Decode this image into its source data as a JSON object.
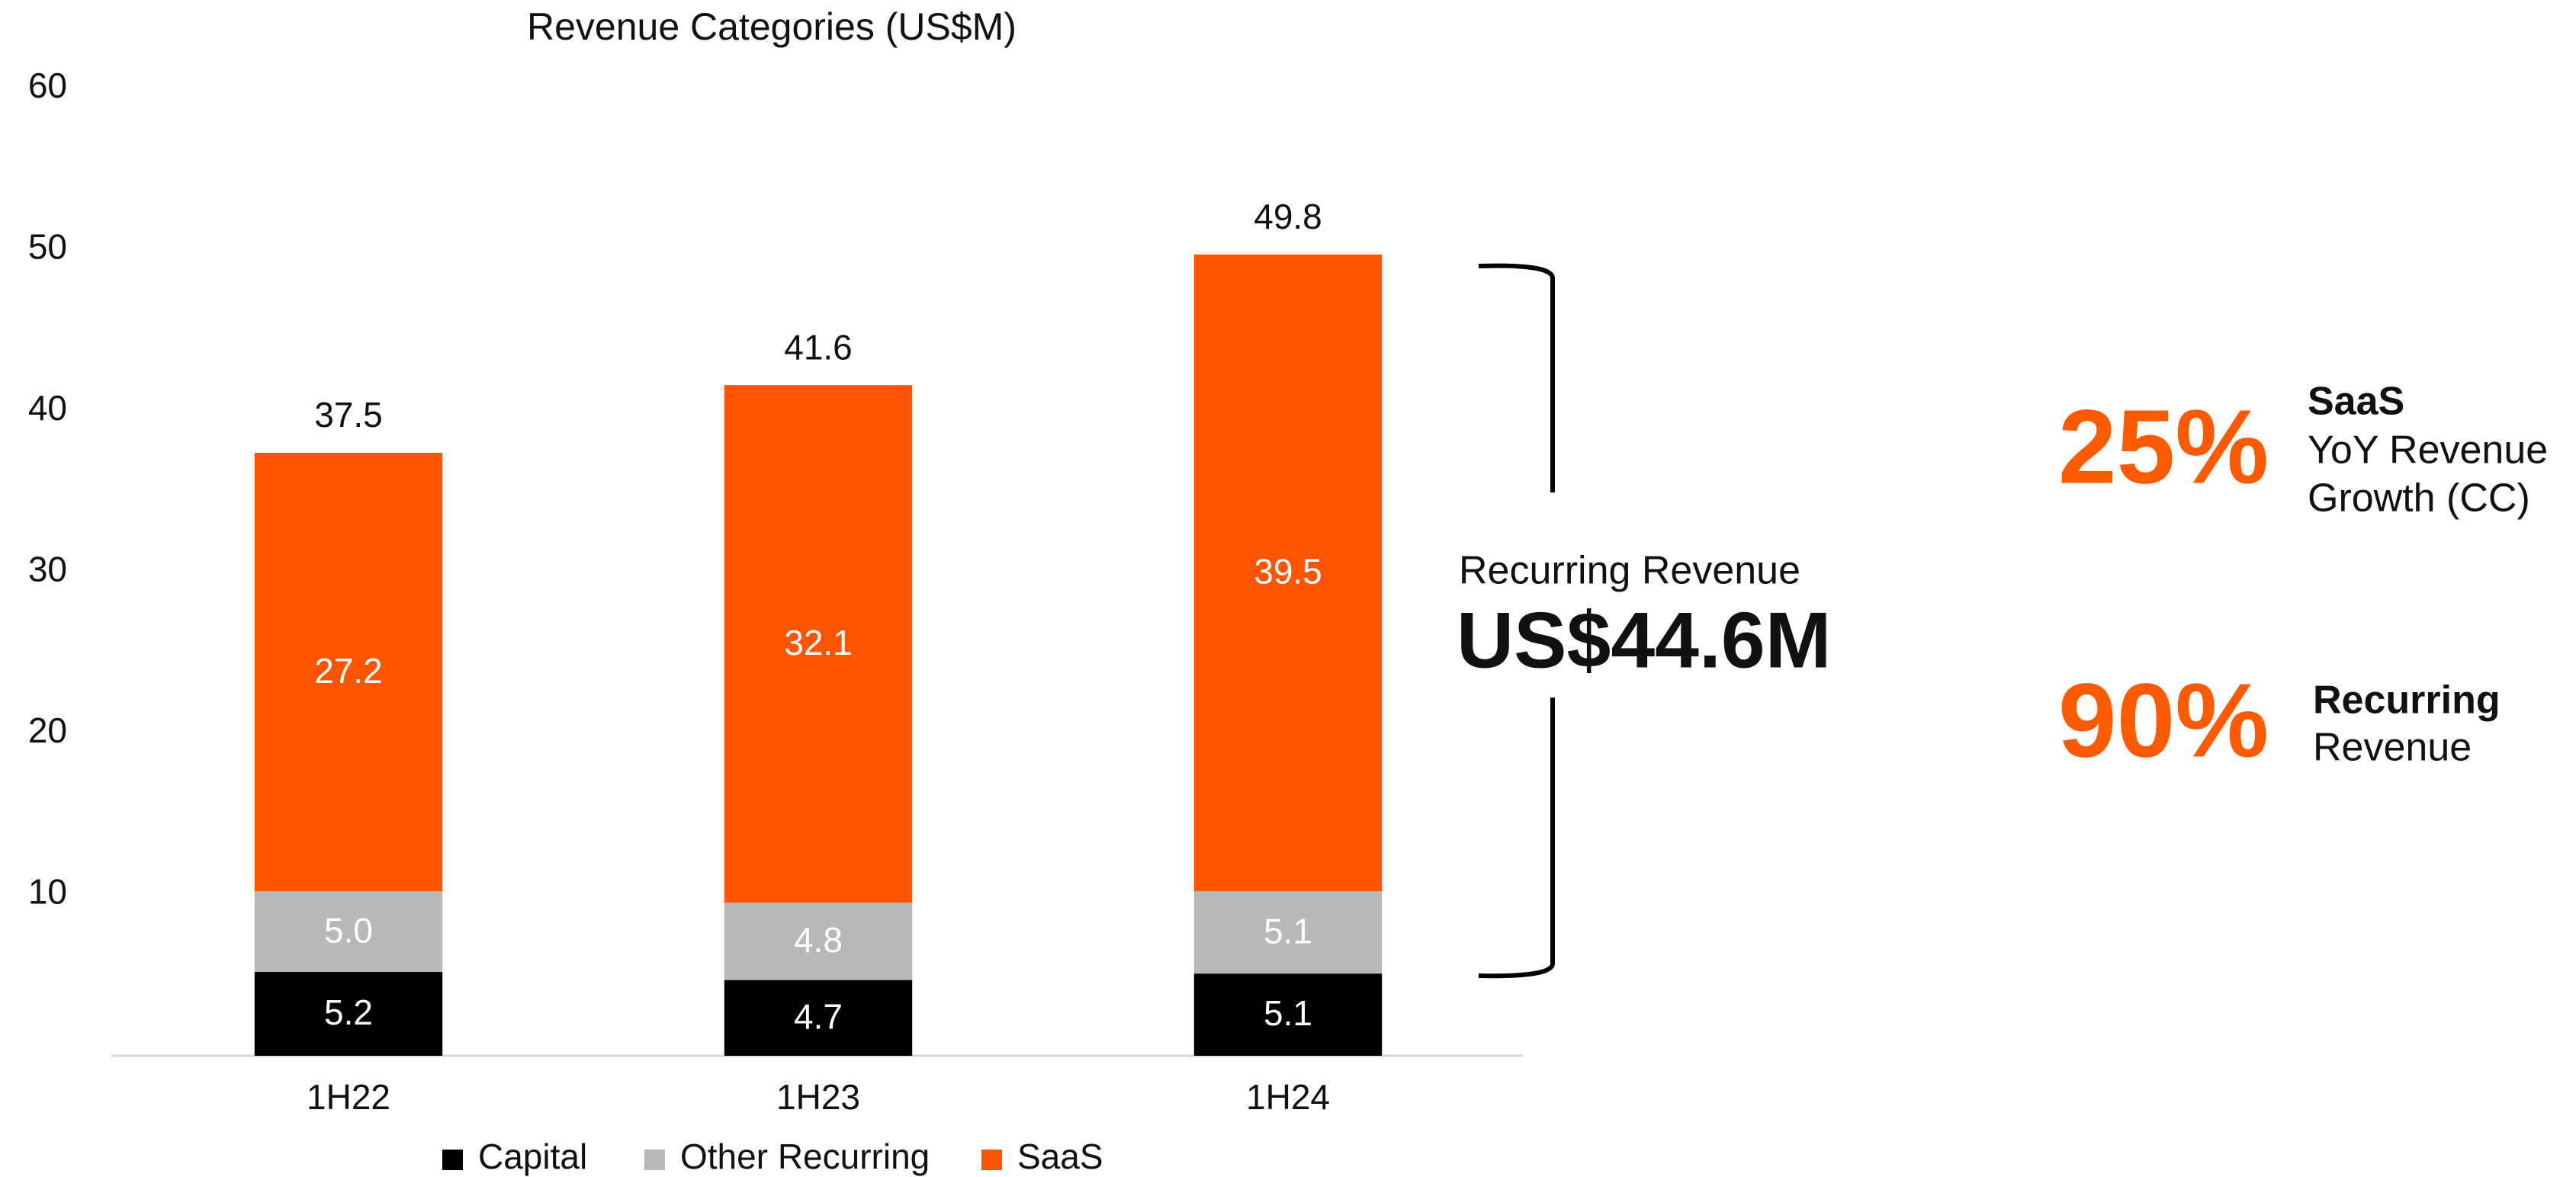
{
  "chart_data": {
    "type": "stacked_bar",
    "title": "Revenue Categories (US$M)",
    "categories": [
      "1H22",
      "1H23",
      "1H24"
    ],
    "series": [
      {
        "name": "Capital",
        "color": "#000000",
        "values": [
          5.2,
          4.7,
          5.1
        ]
      },
      {
        "name": "Other Recurring",
        "color": "#b8b8b8",
        "values": [
          5.0,
          4.8,
          5.1
        ],
        "value_labels": [
          "5.0",
          "4.8",
          "5.1"
        ]
      },
      {
        "name": "SaaS",
        "color": "#ff5500",
        "values": [
          27.2,
          32.1,
          39.5
        ]
      }
    ],
    "totals": [
      37.5,
      41.6,
      49.8
    ],
    "ylim": [
      0,
      60
    ],
    "yticks": [
      10,
      20,
      30,
      40,
      50,
      60
    ],
    "grid": false,
    "legend": "bottom",
    "annotations": {
      "recurring_label": "Recurring Revenue",
      "recurring_value": "US$44.6M",
      "saas_growth": "25%",
      "saas_title": "SaaS",
      "saas_line1": "YoY Revenue",
      "saas_line2": "Growth (CC)",
      "recurring_share": "90%",
      "recurring_title": "Recurring",
      "recurring_line": "Revenue"
    }
  }
}
